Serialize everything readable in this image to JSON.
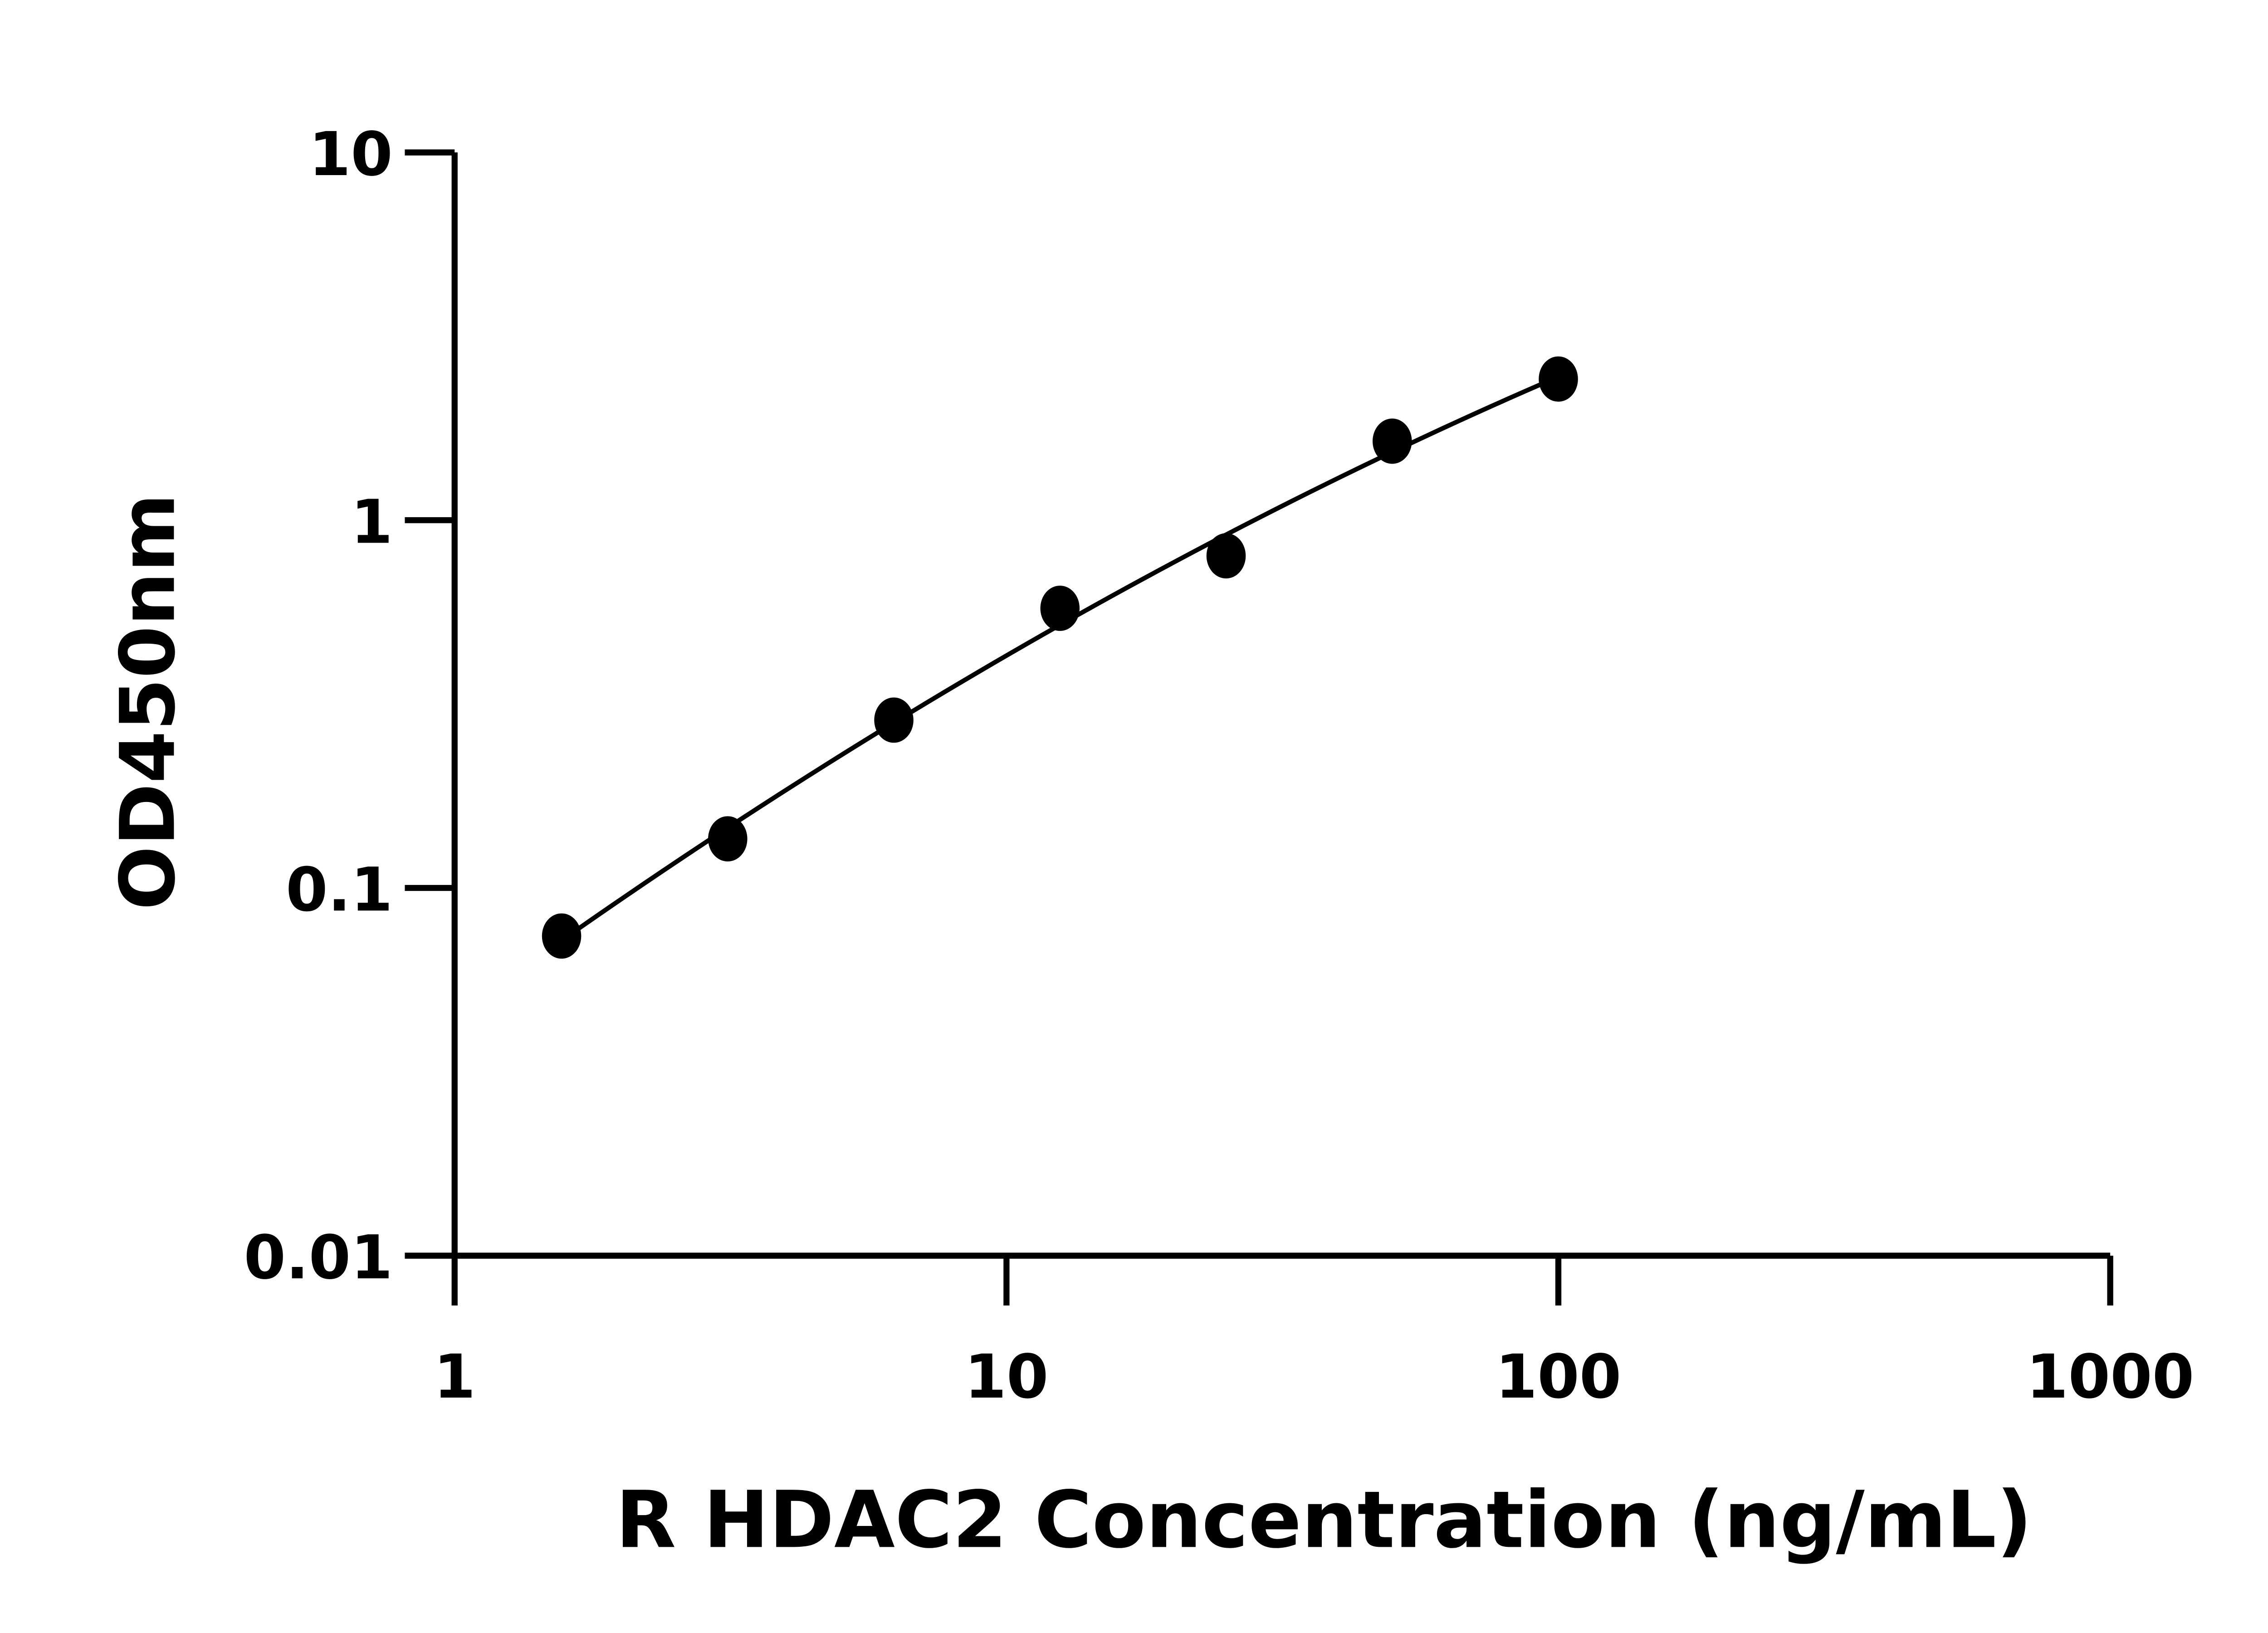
{
  "chart_data": {
    "type": "scatter",
    "title": "",
    "xlabel": "R HDAC2 Concentration (ng/mL)",
    "ylabel": "OD450nm",
    "x_scale": "log",
    "y_scale": "log",
    "xlim": [
      1,
      1000
    ],
    "ylim": [
      0.01,
      10
    ],
    "x_ticks": [
      "1",
      "10",
      "100",
      "1000"
    ],
    "y_ticks": [
      "0.01",
      "0.1",
      "1",
      "10"
    ],
    "grid": false,
    "series": [
      {
        "x": [
          1.5625,
          3.125,
          6.25,
          12.5,
          25,
          50,
          100
        ],
        "y": [
          0.074,
          0.136,
          0.286,
          0.576,
          0.8,
          1.64,
          2.42
        ],
        "marker": "circle",
        "fit_line": true
      }
    ],
    "colors": {
      "marker": "#000000",
      "line": "#000000",
      "axis": "#000000"
    }
  }
}
